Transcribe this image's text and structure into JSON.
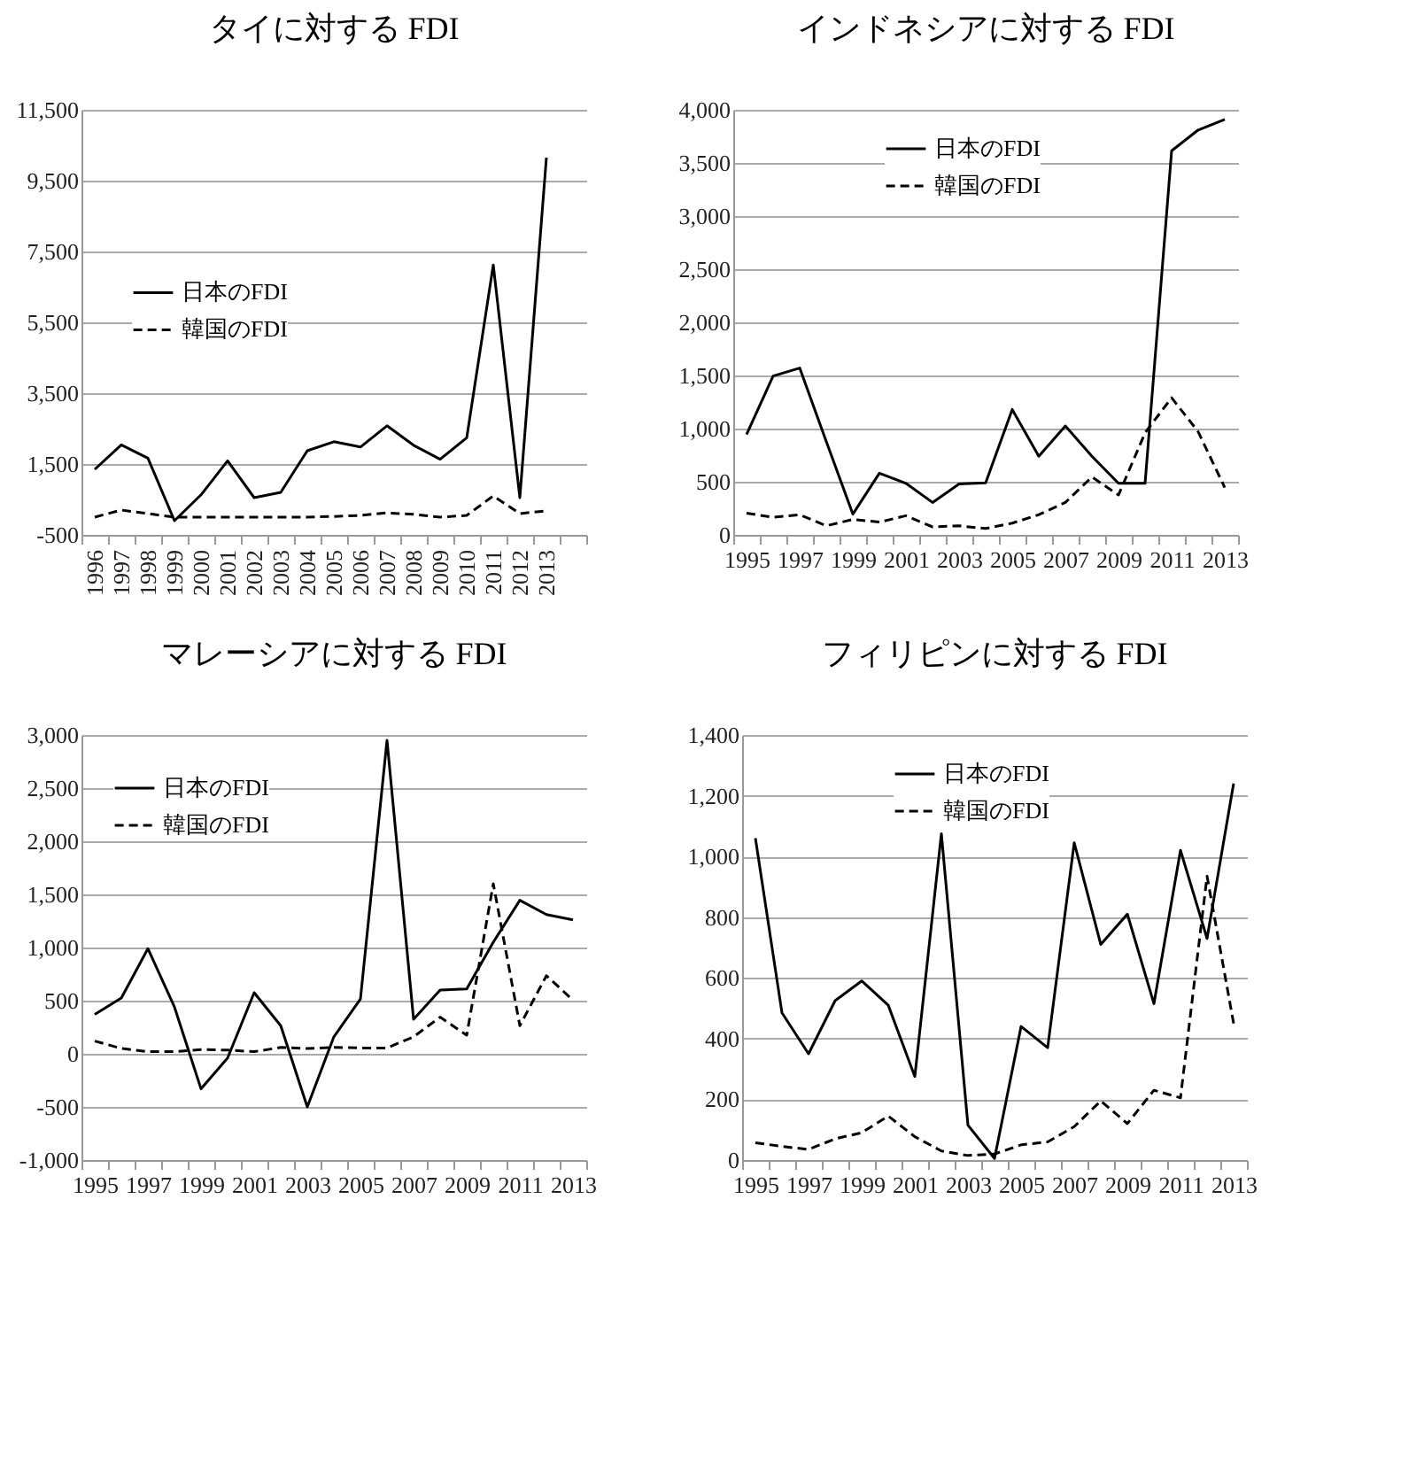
{
  "chart_data": [
    {
      "type": "line",
      "title": "タイに対する FDI",
      "categories": [
        "1996",
        "1997",
        "1998",
        "1999",
        "2000",
        "2001",
        "2002",
        "2003",
        "2004",
        "2005",
        "2006",
        "2007",
        "2008",
        "2009",
        "2010",
        "2011",
        "2012",
        "2013",
        null
      ],
      "ylim": [
        -500,
        11500
      ],
      "yticks": [
        {
          "value": -500,
          "label": "-500"
        },
        {
          "value": 1500,
          "label": "1,500"
        },
        {
          "value": 3500,
          "label": "3,500"
        },
        {
          "value": 5500,
          "label": "5,500"
        },
        {
          "value": 7500,
          "label": "7,500"
        },
        {
          "value": 9500,
          "label": "9,500"
        },
        {
          "value": 11500,
          "label": "11,500"
        }
      ],
      "grid": "y",
      "legend": "left",
      "series": [
        {
          "name": "日本のFDI",
          "color": "#000000",
          "line_style": "solid",
          "values": [
            1350,
            2040,
            1665,
            -100,
            630,
            1590,
            550,
            700,
            1875,
            2130,
            1980,
            2580,
            2030,
            1635,
            2240,
            7120,
            550,
            10150,
            null
          ]
        },
        {
          "name": "韓国のFDI",
          "color": "#000000",
          "line_style": "dashed",
          "values": [
            0,
            200,
            100,
            0,
            0,
            0,
            0,
            0,
            0,
            20,
            50,
            120,
            80,
            0,
            50,
            600,
            100,
            180,
            null
          ]
        }
      ]
    },
    {
      "type": "line",
      "title": "インドネシアに対する FDI",
      "categories": [
        "1995",
        null,
        "1997",
        null,
        "1999",
        null,
        "2001",
        null,
        "2003",
        null,
        "2005",
        null,
        "2007",
        null,
        "2009",
        null,
        "2011",
        null,
        "2013"
      ],
      "ylim": [
        0,
        4000
      ],
      "yticks": [
        0,
        500,
        {
          "value": 1000,
          "label": "1,000"
        },
        {
          "value": 1500,
          "label": "1,500"
        },
        {
          "value": 2000,
          "label": "2,000"
        },
        {
          "value": 2500,
          "label": "2,500"
        },
        {
          "value": 3000,
          "label": "3,000"
        },
        {
          "value": 3500,
          "label": "3,500"
        },
        {
          "value": 4000,
          "label": "4,000"
        }
      ],
      "grid": "y",
      "legend": "top",
      "series": [
        {
          "name": "日本のFDI",
          "color": "#000000",
          "line_style": "solid",
          "values": [
            945,
            1495,
            1570,
            880,
            195,
            580,
            485,
            305,
            480,
            490,
            1180,
            740,
            1025,
            740,
            485,
            485,
            3615,
            3810,
            3910
          ]
        },
        {
          "name": "韓国のFDI",
          "color": "#000000",
          "line_style": "dashed",
          "values": [
            205,
            165,
            190,
            85,
            145,
            120,
            180,
            75,
            85,
            60,
            110,
            190,
            305,
            545,
            375,
            960,
            1290,
            970,
            445
          ]
        }
      ]
    },
    {
      "type": "line",
      "title": "マレーシアに対する FDI",
      "categories": [
        "1995",
        null,
        "1997",
        null,
        "1999",
        null,
        "2001",
        null,
        "2003",
        null,
        "2005",
        null,
        "2007",
        null,
        "2009",
        null,
        "2011",
        null,
        "2013"
      ],
      "ylim": [
        -1000,
        3000
      ],
      "yticks": [
        {
          "value": -1000,
          "label": "-1,000"
        },
        -500,
        0,
        500,
        {
          "value": 1000,
          "label": "1,000"
        },
        {
          "value": 1500,
          "label": "1,500"
        },
        {
          "value": 2000,
          "label": "2,000"
        },
        {
          "value": 2500,
          "label": "2,500"
        },
        {
          "value": 3000,
          "label": "3,000"
        }
      ],
      "grid": "y",
      "legend": "top left",
      "series": [
        {
          "name": "日本のFDI",
          "color": "#000000",
          "line_style": "solid",
          "values": [
            370,
            525,
            990,
            440,
            -330,
            -40,
            575,
            265,
            -500,
            160,
            515,
            2950,
            325,
            600,
            610,
            1050,
            1445,
            1310,
            1260
          ]
        },
        {
          "name": "韓国のFDI",
          "color": "#000000",
          "line_style": "dashed",
          "values": [
            120,
            50,
            20,
            20,
            40,
            35,
            20,
            60,
            50,
            60,
            55,
            55,
            160,
            345,
            175,
            1600,
            265,
            735,
            505
          ]
        }
      ]
    },
    {
      "type": "line",
      "title": "フィリピンに対する FDI",
      "categories": [
        "1995",
        null,
        "1997",
        null,
        "1999",
        null,
        "2001",
        null,
        "2003",
        null,
        "2005",
        null,
        "2007",
        null,
        "2009",
        null,
        "2011",
        null,
        "2013"
      ],
      "ylim": [
        0,
        1400
      ],
      "yticks": [
        0,
        200,
        400,
        600,
        800,
        {
          "value": 1000,
          "label": "1,000"
        },
        {
          "value": 1200,
          "label": "1,200"
        },
        {
          "value": 1400,
          "label": "1,400"
        }
      ],
      "grid": "y",
      "legend": "top",
      "series": [
        {
          "name": "日本のFDI",
          "color": "#000000",
          "line_style": "solid",
          "values": [
            1060,
            485,
            350,
            525,
            590,
            510,
            275,
            1075,
            115,
            5,
            440,
            370,
            1045,
            710,
            810,
            515,
            1020,
            730,
            1240
          ]
        },
        {
          "name": "韓国のFDI",
          "color": "#000000",
          "line_style": "dashed",
          "values": [
            57,
            45,
            35,
            70,
            90,
            145,
            77,
            30,
            15,
            20,
            50,
            60,
            110,
            195,
            120,
            230,
            205,
            935,
            450
          ]
        }
      ]
    }
  ]
}
